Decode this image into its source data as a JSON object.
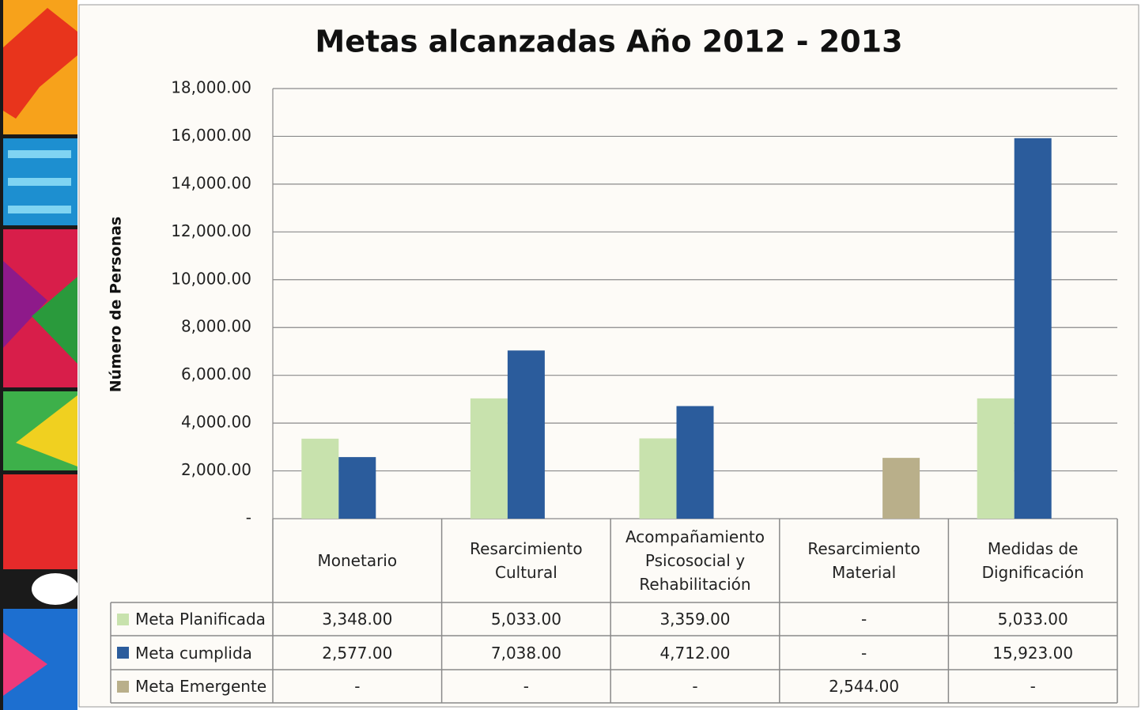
{
  "chart_data": {
    "type": "bar",
    "title": "Metas alcanzadas Año 2012 - 2013",
    "y_label": "Número de Personas",
    "categories": [
      "Monetario",
      "Resarcimiento Cultural",
      "Acompañamiento Psicosocial y Rehabilitación",
      "Resarcimiento Material",
      "Medidas de Dignificación"
    ],
    "series": [
      {
        "name": "Meta Planificada",
        "color": "#c8e2ad",
        "values": [
          3348,
          5033,
          3359,
          null,
          5033
        ],
        "value_labels": [
          "3,348.00",
          "5,033.00",
          "3,359.00",
          "-",
          "5,033.00"
        ]
      },
      {
        "name": "Meta cumplida",
        "color": "#2b5c9c",
        "values": [
          2577,
          7038,
          4712,
          null,
          15923
        ],
        "value_labels": [
          "2,577.00",
          "7,038.00",
          "4,712.00",
          "-",
          "15,923.00"
        ]
      },
      {
        "name": "Meta Emergente",
        "color": "#b9af8a",
        "values": [
          null,
          null,
          null,
          2544,
          null
        ],
        "value_labels": [
          "-",
          "-",
          "-",
          "2,544.00",
          "-"
        ]
      }
    ],
    "ylim": [
      0,
      18000
    ],
    "yticks": [
      {
        "value": 0,
        "label": "-"
      },
      {
        "value": 2000,
        "label": "2,000.00"
      },
      {
        "value": 4000,
        "label": "4,000.00"
      },
      {
        "value": 6000,
        "label": "6,000.00"
      },
      {
        "value": 8000,
        "label": "8,000.00"
      },
      {
        "value": 10000,
        "label": "10,000.00"
      },
      {
        "value": 12000,
        "label": "12,000.00"
      },
      {
        "value": 14000,
        "label": "14,000.00"
      },
      {
        "value": 16000,
        "label": "16,000.00"
      },
      {
        "value": 18000,
        "label": "18,000.00"
      }
    ],
    "grid": true
  }
}
